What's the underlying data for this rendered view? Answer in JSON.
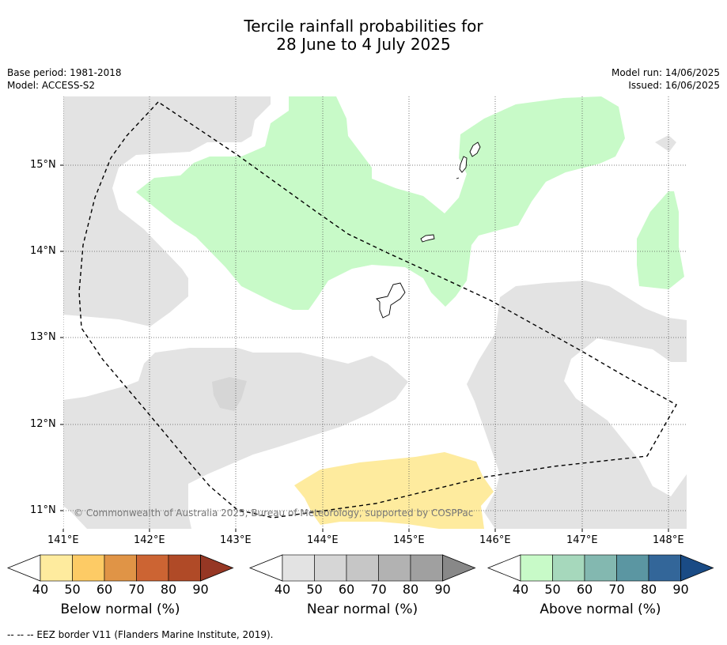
{
  "title": {
    "line1": "Tercile rainfall probabilities for",
    "line2": "28 June to 4 July 2025"
  },
  "meta_left": {
    "base_period": "Base period: 1981-2018",
    "model": "Model: ACCESS-S2"
  },
  "meta_right": {
    "model_run": "Model run: 14/06/2025",
    "issued": "Issued: 16/06/2025"
  },
  "map": {
    "lat_labels": [
      "15°N",
      "14°N",
      "13°N",
      "12°N",
      "11°N"
    ],
    "lon_labels": [
      "141°E",
      "142°E",
      "143°E",
      "144°E",
      "145°E",
      "146°E",
      "147°E",
      "148°E"
    ],
    "credit": "© Commonwealth of Australia 2025, Bureau of Meteorology, supported by COSPPac",
    "colors": {
      "near_normal_40": "#e3e3e3",
      "near_normal_45": "#d6d6d6",
      "above_normal_40": "#c8fac8",
      "below_normal_40": "#feeb9e"
    }
  },
  "colorbars": [
    {
      "label": "Below normal (%)",
      "ticks": [
        "40",
        "50",
        "60",
        "70",
        "80",
        "90"
      ],
      "colors": [
        "#ffffff",
        "#feeb9e",
        "#fdcb65",
        "#e09446",
        "#cc6433",
        "#b04a27",
        "#963724"
      ]
    },
    {
      "label": "Near normal (%)",
      "ticks": [
        "40",
        "50",
        "60",
        "70",
        "80",
        "90"
      ],
      "colors": [
        "#ffffff",
        "#e3e3e3",
        "#d6d6d6",
        "#c6c6c6",
        "#b2b2b2",
        "#a0a0a0",
        "#888888"
      ]
    },
    {
      "label": "Above normal (%)",
      "ticks": [
        "40",
        "50",
        "60",
        "70",
        "80",
        "90"
      ],
      "colors": [
        "#ffffff",
        "#c8fac8",
        "#a6d8bc",
        "#83b8b0",
        "#5b96a2",
        "#336699",
        "#1a4b85"
      ]
    }
  ],
  "footer": "--  --  -- EEZ border V11 (Flanders Marine Institute, 2019)."
}
